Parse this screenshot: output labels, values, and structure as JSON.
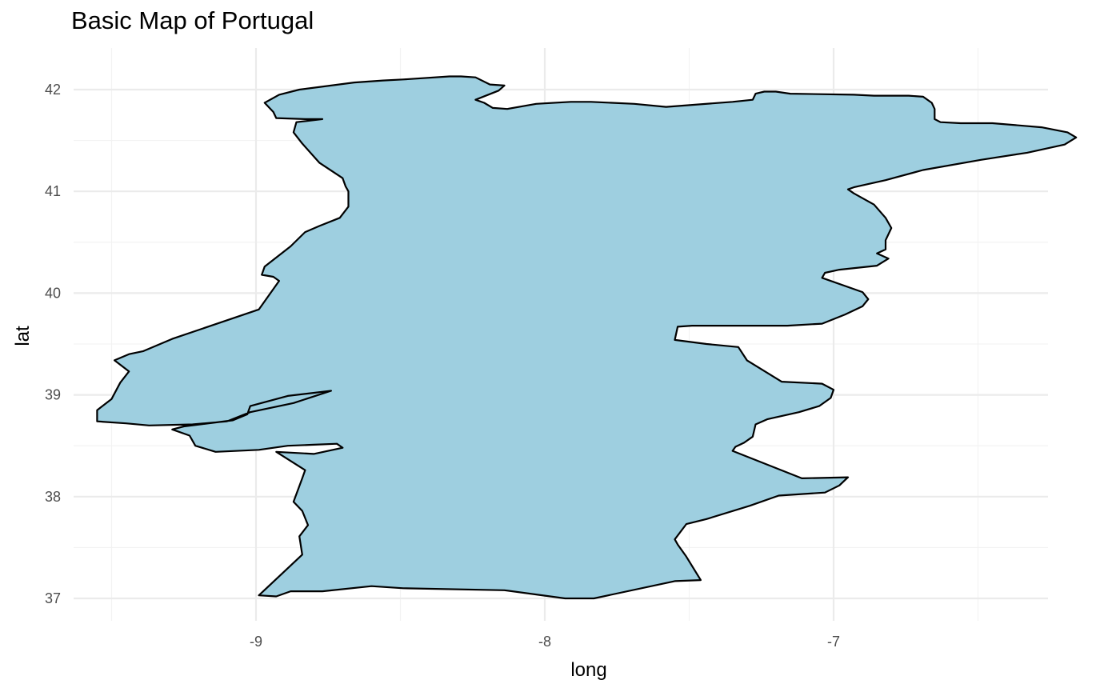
{
  "chart_data": {
    "type": "map",
    "title": "Basic Map of Portugal",
    "xlabel": "long",
    "ylabel": "lat",
    "x_ticks": [
      -9,
      -8,
      -7
    ],
    "y_ticks": [
      37,
      38,
      39,
      40,
      41,
      42
    ],
    "x_tick_labels": [
      "-9",
      "-8",
      "-7"
    ],
    "y_tick_labels": [
      "37",
      "38",
      "39",
      "40",
      "41",
      "42"
    ],
    "xlim": [
      -9.6,
      -6.15
    ],
    "ylim": [
      36.9,
      42.4
    ],
    "grid": true,
    "legend": "none",
    "region": {
      "name": "Portugal",
      "fill": "#9ecfe0",
      "stroke": "#000000",
      "outline": [
        [
          -8.99,
          37.03
        ],
        [
          -8.93,
          37.02
        ],
        [
          -8.88,
          37.07
        ],
        [
          -8.77,
          37.07
        ],
        [
          -8.6,
          37.12
        ],
        [
          -8.49,
          37.1
        ],
        [
          -8.14,
          37.08
        ],
        [
          -7.93,
          37.0
        ],
        [
          -7.83,
          37.0
        ],
        [
          -7.55,
          37.17
        ],
        [
          -7.46,
          37.18
        ],
        [
          -7.51,
          37.41
        ],
        [
          -7.54,
          37.53
        ],
        [
          -7.55,
          37.58
        ],
        [
          -7.51,
          37.73
        ],
        [
          -7.44,
          37.78
        ],
        [
          -7.29,
          37.91
        ],
        [
          -7.19,
          38.01
        ],
        [
          -7.03,
          38.04
        ],
        [
          -6.98,
          38.11
        ],
        [
          -6.95,
          38.19
        ],
        [
          -7.11,
          38.18
        ],
        [
          -7.35,
          38.45
        ],
        [
          -7.34,
          38.49
        ],
        [
          -7.31,
          38.53
        ],
        [
          -7.28,
          38.59
        ],
        [
          -7.27,
          38.71
        ],
        [
          -7.23,
          38.76
        ],
        [
          -7.12,
          38.83
        ],
        [
          -7.05,
          38.89
        ],
        [
          -7.01,
          38.97
        ],
        [
          -7.0,
          39.05
        ],
        [
          -7.04,
          39.11
        ],
        [
          -7.18,
          39.13
        ],
        [
          -7.3,
          39.34
        ],
        [
          -7.33,
          39.47
        ],
        [
          -7.44,
          39.5
        ],
        [
          -7.55,
          39.54
        ],
        [
          -7.54,
          39.67
        ],
        [
          -7.49,
          39.68
        ],
        [
          -7.16,
          39.68
        ],
        [
          -7.04,
          39.7
        ],
        [
          -6.96,
          39.79
        ],
        [
          -6.9,
          39.87
        ],
        [
          -6.88,
          39.94
        ],
        [
          -6.9,
          40.01
        ],
        [
          -7.04,
          40.15
        ],
        [
          -7.03,
          40.2
        ],
        [
          -6.98,
          40.23
        ],
        [
          -6.85,
          40.27
        ],
        [
          -6.81,
          40.34
        ],
        [
          -6.85,
          40.39
        ],
        [
          -6.82,
          40.43
        ],
        [
          -6.82,
          40.52
        ],
        [
          -6.8,
          40.64
        ],
        [
          -6.82,
          40.74
        ],
        [
          -6.86,
          40.87
        ],
        [
          -6.93,
          40.98
        ],
        [
          -6.95,
          41.02
        ],
        [
          -6.93,
          41.04
        ],
        [
          -6.82,
          41.11
        ],
        [
          -6.69,
          41.21
        ],
        [
          -6.49,
          41.31
        ],
        [
          -6.33,
          41.38
        ],
        [
          -6.2,
          41.46
        ],
        [
          -6.16,
          41.53
        ],
        [
          -6.19,
          41.58
        ],
        [
          -6.28,
          41.63
        ],
        [
          -6.45,
          41.67
        ],
        [
          -6.56,
          41.67
        ],
        [
          -6.63,
          41.68
        ],
        [
          -6.65,
          41.71
        ],
        [
          -6.65,
          41.81
        ],
        [
          -6.66,
          41.87
        ],
        [
          -6.69,
          41.93
        ],
        [
          -6.74,
          41.94
        ],
        [
          -6.86,
          41.94
        ],
        [
          -6.93,
          41.95
        ],
        [
          -7.15,
          41.96
        ],
        [
          -7.2,
          41.98
        ],
        [
          -7.24,
          41.98
        ],
        [
          -7.27,
          41.96
        ],
        [
          -7.28,
          41.9
        ],
        [
          -7.35,
          41.88
        ],
        [
          -7.58,
          41.83
        ],
        [
          -7.69,
          41.86
        ],
        [
          -7.84,
          41.88
        ],
        [
          -7.91,
          41.88
        ],
        [
          -8.03,
          41.86
        ],
        [
          -8.13,
          41.81
        ],
        [
          -8.18,
          41.82
        ],
        [
          -8.21,
          41.87
        ],
        [
          -8.24,
          41.9
        ],
        [
          -8.16,
          41.99
        ],
        [
          -8.14,
          42.04
        ],
        [
          -8.19,
          42.05
        ],
        [
          -8.24,
          42.12
        ],
        [
          -8.29,
          42.13
        ],
        [
          -8.33,
          42.13
        ],
        [
          -8.49,
          42.1
        ],
        [
          -8.56,
          42.09
        ],
        [
          -8.66,
          42.07
        ],
        [
          -8.85,
          42.0
        ],
        [
          -8.92,
          41.95
        ],
        [
          -8.97,
          41.87
        ],
        [
          -8.94,
          41.78
        ],
        [
          -8.93,
          41.72
        ],
        [
          -8.83,
          41.71
        ],
        [
          -8.77,
          41.71
        ],
        [
          -8.86,
          41.68
        ],
        [
          -8.87,
          41.58
        ],
        [
          -8.84,
          41.47
        ],
        [
          -8.78,
          41.28
        ],
        [
          -8.7,
          41.13
        ],
        [
          -8.69,
          41.05
        ],
        [
          -8.68,
          41.0
        ],
        [
          -8.68,
          40.85
        ],
        [
          -8.71,
          40.74
        ],
        [
          -8.78,
          40.66
        ],
        [
          -8.83,
          40.6
        ],
        [
          -8.88,
          40.46
        ],
        [
          -8.97,
          40.26
        ],
        [
          -8.98,
          40.18
        ],
        [
          -8.94,
          40.16
        ],
        [
          -8.92,
          40.12
        ],
        [
          -8.99,
          39.84
        ],
        [
          -9.29,
          39.55
        ],
        [
          -9.39,
          39.43
        ],
        [
          -9.44,
          39.4
        ],
        [
          -9.49,
          39.34
        ],
        [
          -9.44,
          39.23
        ],
        [
          -9.47,
          39.12
        ],
        [
          -9.5,
          38.96
        ],
        [
          -9.55,
          38.85
        ],
        [
          -9.55,
          38.74
        ],
        [
          -9.45,
          38.72
        ],
        [
          -9.37,
          38.7
        ],
        [
          -9.22,
          38.71
        ],
        [
          -9.1,
          38.74
        ],
        [
          -9.02,
          38.83
        ],
        [
          -8.87,
          38.92
        ],
        [
          -8.74,
          39.04
        ],
        [
          -8.89,
          38.99
        ],
        [
          -9.02,
          38.89
        ],
        [
          -9.03,
          38.81
        ],
        [
          -9.08,
          38.75
        ],
        [
          -9.25,
          38.69
        ],
        [
          -9.29,
          38.66
        ],
        [
          -9.23,
          38.6
        ],
        [
          -9.21,
          38.5
        ],
        [
          -9.14,
          38.44
        ],
        [
          -8.99,
          38.46
        ],
        [
          -8.89,
          38.5
        ],
        [
          -8.8,
          38.51
        ],
        [
          -8.72,
          38.52
        ],
        [
          -8.7,
          38.48
        ],
        [
          -8.8,
          38.42
        ],
        [
          -8.93,
          38.44
        ],
        [
          -8.83,
          38.26
        ],
        [
          -8.84,
          38.18
        ],
        [
          -8.87,
          37.95
        ],
        [
          -8.84,
          37.86
        ],
        [
          -8.82,
          37.72
        ],
        [
          -8.85,
          37.61
        ],
        [
          -8.84,
          37.43
        ]
      ]
    }
  }
}
